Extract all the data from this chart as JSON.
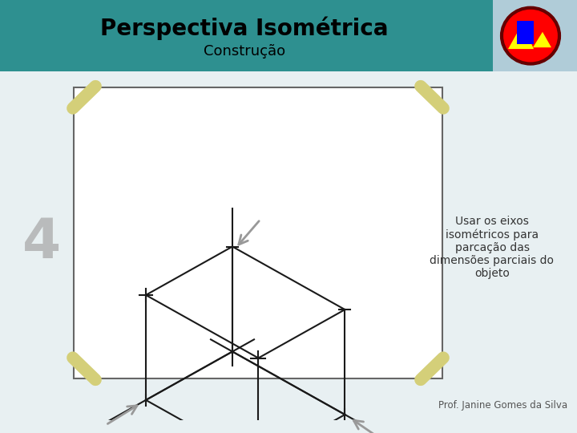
{
  "title": "Perspectiva Isométrica",
  "subtitle": "Construção",
  "slide_bg": "#e8f0f2",
  "header_teal": "#2e9090",
  "header_right_bg": "#b0ccd8",
  "tape_color": "#ddd98a",
  "text_annotation": "Usar os eixos\nisométricos para\nparcação das\ndimensões parciais do\nobjeto",
  "number_label": "4",
  "footer_text": "Prof. Janine Gomes da Silva",
  "line_color": "#1a1a1a",
  "arrow_color": "#999999"
}
